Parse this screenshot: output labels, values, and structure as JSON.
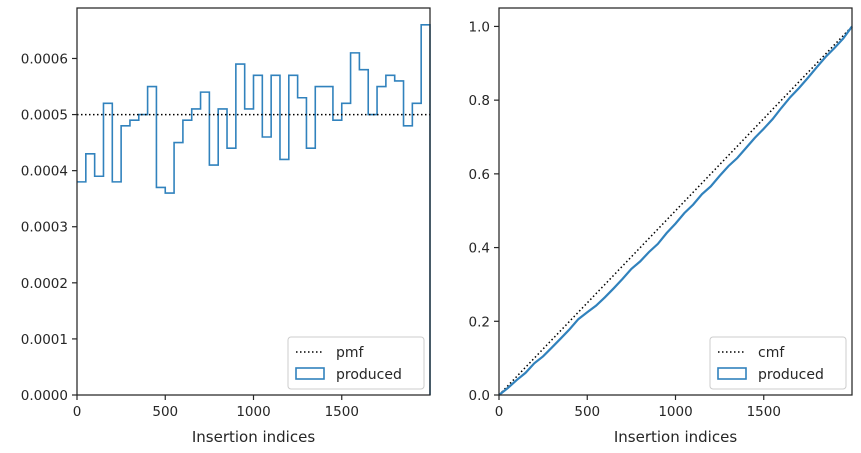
{
  "colors": {
    "series": "#3182bd",
    "reference": "#000000",
    "axes": "#262626"
  },
  "chart_data": [
    {
      "type": "histogram-step",
      "title": "",
      "xlabel": "Insertion indices",
      "ylabel": "",
      "xlim": [
        0,
        2000
      ],
      "ylim": [
        0,
        0.00069
      ],
      "xticks": [
        0,
        500,
        1000,
        1500
      ],
      "xtick_labels": [
        "0",
        "500",
        "1000",
        "1500"
      ],
      "yticks": [
        0,
        0.0001,
        0.0002,
        0.0003,
        0.0004,
        0.0005,
        0.0006
      ],
      "ytick_labels": [
        "0.0000",
        "0.0001",
        "0.0002",
        "0.0003",
        "0.0004",
        "0.0005",
        "0.0006"
      ],
      "legend": {
        "placement": "lower-right",
        "entries": [
          "pmf",
          "produced"
        ]
      },
      "reference_line": {
        "name": "pmf",
        "style": "dotted",
        "y": 0.0005
      },
      "bin_width": 50,
      "series": [
        {
          "name": "produced",
          "style": "step",
          "values": [
            0.00038,
            0.00043,
            0.00039,
            0.00052,
            0.00038,
            0.00048,
            0.00049,
            0.0005,
            0.00055,
            0.00037,
            0.00036,
            0.00045,
            0.00049,
            0.00051,
            0.00054,
            0.00041,
            0.00051,
            0.00044,
            0.00059,
            0.00051,
            0.00057,
            0.00046,
            0.00057,
            0.00042,
            0.00057,
            0.00053,
            0.00044,
            0.00055,
            0.00055,
            0.00049,
            0.00052,
            0.00061,
            0.00058,
            0.0005,
            0.00055,
            0.00057,
            0.00056,
            0.00048,
            0.00052,
            0.00066
          ]
        }
      ]
    },
    {
      "type": "line",
      "title": "",
      "xlabel": "Insertion indices",
      "ylabel": "",
      "xlim": [
        0,
        2000
      ],
      "ylim": [
        0,
        1.05
      ],
      "xticks": [
        0,
        500,
        1000,
        1500
      ],
      "xtick_labels": [
        "0",
        "500",
        "1000",
        "1500"
      ],
      "yticks": [
        0,
        0.2,
        0.4,
        0.6,
        0.8,
        1.0
      ],
      "ytick_labels": [
        "0.0",
        "0.2",
        "0.4",
        "0.6",
        "0.8",
        "1.0"
      ],
      "legend": {
        "placement": "lower-right",
        "entries": [
          "cmf",
          "produced"
        ]
      },
      "reference_line": {
        "name": "cmf",
        "style": "dotted",
        "x": [
          0,
          2000
        ],
        "y": [
          0,
          1.0
        ]
      },
      "series": [
        {
          "name": "produced",
          "style": "step",
          "x": [
            0,
            50,
            100,
            150,
            200,
            250,
            300,
            350,
            400,
            450,
            500,
            550,
            600,
            650,
            700,
            750,
            800,
            850,
            900,
            950,
            1000,
            1050,
            1100,
            1150,
            1200,
            1250,
            1300,
            1350,
            1400,
            1450,
            1500,
            1550,
            1600,
            1650,
            1700,
            1750,
            1800,
            1850,
            1900,
            1950,
            2000
          ],
          "y": [
            0,
            0.019,
            0.0405,
            0.06,
            0.086,
            0.105,
            0.129,
            0.1535,
            0.1785,
            0.206,
            0.2245,
            0.2425,
            0.265,
            0.2895,
            0.315,
            0.342,
            0.3625,
            0.388,
            0.41,
            0.4395,
            0.465,
            0.4935,
            0.5165,
            0.545,
            0.566,
            0.5945,
            0.621,
            0.643,
            0.6705,
            0.698,
            0.7225,
            0.7485,
            0.779,
            0.808,
            0.833,
            0.8605,
            0.889,
            0.917,
            0.941,
            0.967,
            1.0
          ]
        }
      ]
    }
  ]
}
